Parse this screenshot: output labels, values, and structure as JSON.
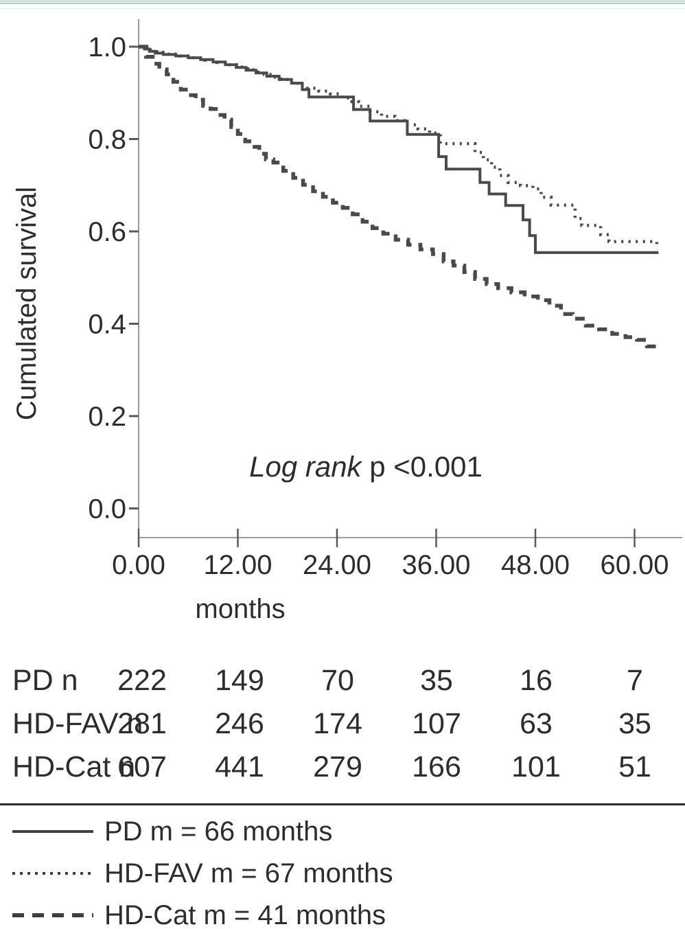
{
  "chart_data": {
    "type": "line",
    "subtype": "kaplan-meier-step",
    "title": "",
    "xlabel": "months",
    "ylabel": "Cumulated survival",
    "x_ticks": [
      "0.00",
      "12.00",
      "24.00",
      "36.00",
      "48.00",
      "60.00"
    ],
    "x_tick_values": [
      0,
      12,
      24,
      36,
      48,
      60
    ],
    "y_ticks": [
      "1.0",
      "0.8",
      "0.6",
      "0.4",
      "0.2",
      "0.0"
    ],
    "y_tick_values": [
      1.0,
      0.8,
      0.6,
      0.4,
      0.2,
      0.0
    ],
    "xlim": [
      0,
      63
    ],
    "ylim": [
      0.0,
      1.0
    ],
    "grid": false,
    "annotation": {
      "italic": "Log rank",
      "normal": " p <0.001"
    },
    "series": [
      {
        "name": "PD",
        "style": "solid",
        "points": [
          [
            0,
            1.0
          ],
          [
            0.7,
            0.995
          ],
          [
            1.3,
            0.99
          ],
          [
            2,
            0.986
          ],
          [
            3,
            0.983
          ],
          [
            4.5,
            0.98
          ],
          [
            6,
            0.976
          ],
          [
            7.5,
            0.972
          ],
          [
            9,
            0.967
          ],
          [
            10.5,
            0.961
          ],
          [
            11.8,
            0.955
          ],
          [
            13,
            0.949
          ],
          [
            14.2,
            0.943
          ],
          [
            15.5,
            0.936
          ],
          [
            17,
            0.929
          ],
          [
            18.5,
            0.921
          ],
          [
            19.8,
            0.907
          ],
          [
            20.6,
            0.891
          ],
          [
            26,
            0.864
          ],
          [
            28,
            0.839
          ],
          [
            32.5,
            0.81
          ],
          [
            36.3,
            0.762
          ],
          [
            37.2,
            0.735
          ],
          [
            41.3,
            0.706
          ],
          [
            42.4,
            0.681
          ],
          [
            44.4,
            0.656
          ],
          [
            46.5,
            0.625
          ],
          [
            47.3,
            0.591
          ],
          [
            48,
            0.554
          ],
          [
            62.9,
            0.554
          ]
        ]
      },
      {
        "name": "HD-FAV",
        "style": "dotted",
        "points": [
          [
            0,
            1.0
          ],
          [
            1,
            0.993
          ],
          [
            2.2,
            0.988
          ],
          [
            3.6,
            0.984
          ],
          [
            5,
            0.98
          ],
          [
            6.5,
            0.976
          ],
          [
            8,
            0.971
          ],
          [
            9.5,
            0.966
          ],
          [
            11,
            0.961
          ],
          [
            12.2,
            0.956
          ],
          [
            13.2,
            0.95
          ],
          [
            14.2,
            0.945
          ],
          [
            15.2,
            0.94
          ],
          [
            16.2,
            0.934
          ],
          [
            17.2,
            0.929
          ],
          [
            18.2,
            0.923
          ],
          [
            19.2,
            0.916
          ],
          [
            20.4,
            0.91
          ],
          [
            21.8,
            0.904
          ],
          [
            23.2,
            0.898
          ],
          [
            24.6,
            0.889
          ],
          [
            25.6,
            0.881
          ],
          [
            26.6,
            0.871
          ],
          [
            28,
            0.859
          ],
          [
            29.4,
            0.849
          ],
          [
            31,
            0.84
          ],
          [
            32.4,
            0.831
          ],
          [
            33.8,
            0.822
          ],
          [
            35.2,
            0.813
          ],
          [
            36.5,
            0.79
          ],
          [
            40.7,
            0.771
          ],
          [
            41.7,
            0.755
          ],
          [
            42.7,
            0.739
          ],
          [
            43.7,
            0.721
          ],
          [
            44.7,
            0.706
          ],
          [
            46.2,
            0.699
          ],
          [
            47.7,
            0.692
          ],
          [
            48.7,
            0.674
          ],
          [
            49.9,
            0.657
          ],
          [
            52.8,
            0.628
          ],
          [
            53.6,
            0.613
          ],
          [
            55.9,
            0.593
          ],
          [
            56.9,
            0.578
          ],
          [
            62.3,
            0.578
          ],
          [
            62.7,
            0.561
          ]
        ]
      },
      {
        "name": "HD-Cat",
        "style": "dashed",
        "points": [
          [
            0,
            1.0
          ],
          [
            0.9,
            0.978
          ],
          [
            1.7,
            0.963
          ],
          [
            2.5,
            0.951
          ],
          [
            3.4,
            0.94
          ],
          [
            4.2,
            0.924
          ],
          [
            5.1,
            0.907
          ],
          [
            6,
            0.895
          ],
          [
            6.9,
            0.885
          ],
          [
            7.8,
            0.872
          ],
          [
            8.7,
            0.865
          ],
          [
            9.6,
            0.852
          ],
          [
            10.4,
            0.842
          ],
          [
            11.2,
            0.826
          ],
          [
            12,
            0.811
          ],
          [
            12.9,
            0.795
          ],
          [
            13.7,
            0.783
          ],
          [
            14.6,
            0.768
          ],
          [
            15.4,
            0.756
          ],
          [
            16.3,
            0.749
          ],
          [
            17.5,
            0.731
          ],
          [
            18.7,
            0.716
          ],
          [
            19.9,
            0.701
          ],
          [
            21.1,
            0.687
          ],
          [
            22.3,
            0.675
          ],
          [
            23.5,
            0.662
          ],
          [
            24.7,
            0.651
          ],
          [
            25.9,
            0.637
          ],
          [
            27.1,
            0.621
          ],
          [
            28.3,
            0.607
          ],
          [
            29.6,
            0.595
          ],
          [
            31.1,
            0.582
          ],
          [
            32.6,
            0.571
          ],
          [
            34.1,
            0.561
          ],
          [
            35.6,
            0.551
          ],
          [
            36.9,
            0.535
          ],
          [
            38.1,
            0.526
          ],
          [
            39.4,
            0.512
          ],
          [
            40.7,
            0.497
          ],
          [
            42.1,
            0.486
          ],
          [
            43.5,
            0.477
          ],
          [
            45.1,
            0.468
          ],
          [
            46.7,
            0.459
          ],
          [
            48.3,
            0.451
          ],
          [
            49.7,
            0.439
          ],
          [
            51.1,
            0.421
          ],
          [
            52.5,
            0.411
          ],
          [
            54.1,
            0.396
          ],
          [
            55.7,
            0.388
          ],
          [
            57.3,
            0.378
          ],
          [
            58.9,
            0.371
          ],
          [
            60.3,
            0.365
          ],
          [
            61.5,
            0.351
          ],
          [
            62.6,
            0.34
          ]
        ]
      }
    ]
  },
  "risk_table": {
    "rows": [
      {
        "label": "PD n",
        "counts": [
          "222",
          "149",
          "70",
          "35",
          "16",
          "7"
        ]
      },
      {
        "label": "HD-FAV n",
        "counts": [
          "281",
          "246",
          "174",
          "107",
          "63",
          "35"
        ]
      },
      {
        "label": "HD-Cat n",
        "counts": [
          "607",
          "441",
          "279",
          "166",
          "101",
          "51"
        ]
      }
    ]
  },
  "legend": {
    "items": [
      {
        "style": "solid",
        "label": "PD m = 66 months"
      },
      {
        "style": "dotted",
        "label": "HD-FAV m = 67 months"
      },
      {
        "style": "dashed",
        "label": "HD-Cat m = 41 months"
      }
    ]
  },
  "colors": {
    "curve": "#4a4a4a",
    "axis": "#9a9a9a",
    "tick": "#5a5a5a",
    "text": "#2d2d2d",
    "accent_bar": "#cfe0e1",
    "divider": "#2e2e2e"
  }
}
